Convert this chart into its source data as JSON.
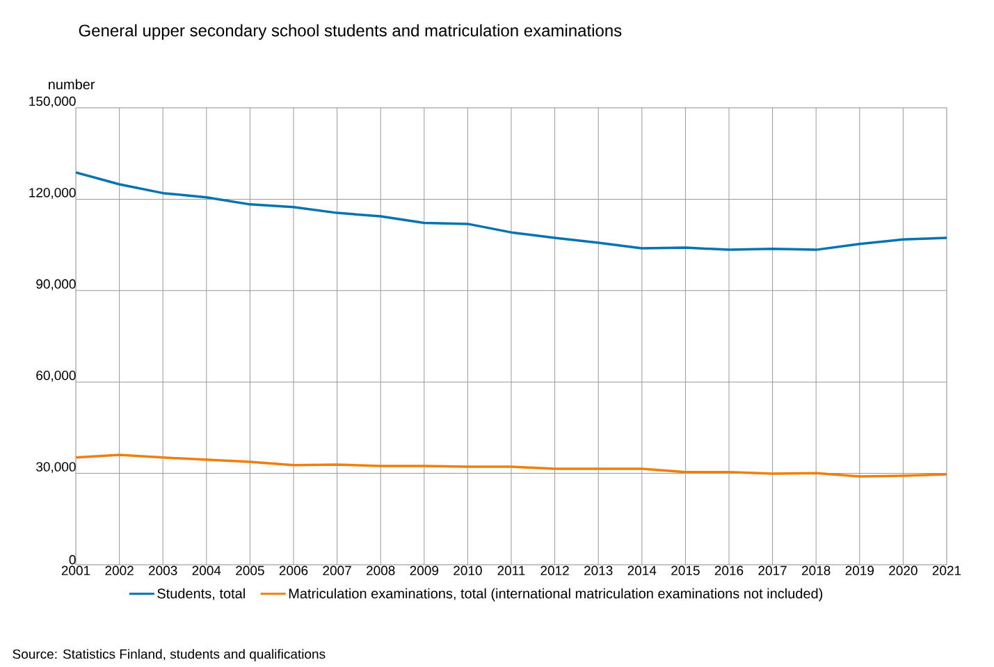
{
  "chart_data": {
    "type": "line",
    "title": "General upper secondary school students and matriculation examinations",
    "ylabel": "number",
    "x": [
      2001,
      2002,
      2003,
      2004,
      2005,
      2006,
      2007,
      2008,
      2009,
      2010,
      2011,
      2012,
      2013,
      2014,
      2015,
      2016,
      2017,
      2018,
      2019,
      2020,
      2021
    ],
    "series": [
      {
        "name": "Students, total",
        "color": "#0073b0",
        "values": [
          128800,
          124900,
          122000,
          120600,
          118300,
          117400,
          115500,
          114400,
          112200,
          111900,
          109100,
          107300,
          105700,
          103900,
          104100,
          103400,
          103700,
          103400,
          105300,
          106800,
          107300
        ]
      },
      {
        "name": "Matriculation examinations, total (international matriculation examinations not included)",
        "color": "#f07f09",
        "values": [
          35200,
          36100,
          35200,
          34500,
          33800,
          32700,
          32900,
          32400,
          32400,
          32200,
          32200,
          31500,
          31500,
          31500,
          30400,
          30400,
          29900,
          30100,
          29000,
          29200,
          29700
        ]
      }
    ],
    "xlim": [
      2001,
      2021
    ],
    "xticks": [
      2001,
      2002,
      2003,
      2004,
      2005,
      2006,
      2007,
      2008,
      2009,
      2010,
      2011,
      2012,
      2013,
      2014,
      2015,
      2016,
      2017,
      2018,
      2019,
      2020,
      2021
    ],
    "ylim": [
      0,
      150000
    ],
    "yticks": [
      0,
      {
        "value": 30000,
        "label": "30,000"
      },
      {
        "value": 60000,
        "label": "60,000"
      },
      {
        "value": 90000,
        "label": "90,000"
      },
      {
        "value": 120000,
        "label": "120,000"
      },
      {
        "value": 150000,
        "label": "150,000"
      }
    ],
    "grid": true,
    "legend": "bottom",
    "annotations": [
      "Source: Statistics Finland, students and qualifications"
    ]
  }
}
